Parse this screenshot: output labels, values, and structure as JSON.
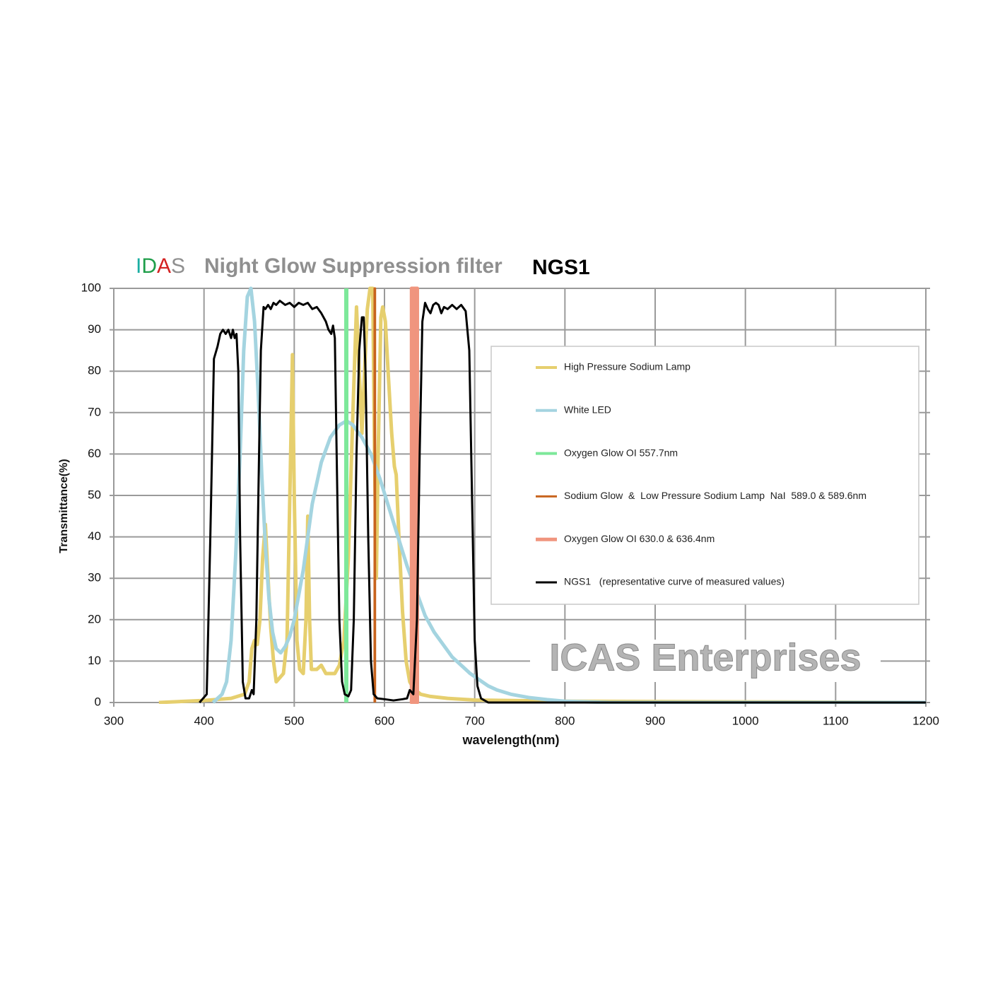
{
  "chart_data": {
    "type": "line",
    "brand": "IDAS",
    "brand_colors": [
      "#1aaea3",
      "#1f9e4a",
      "#d42222",
      "#8f8f8f"
    ],
    "title": "Night Glow Suppression filter",
    "model": "NGS1",
    "annotation": "ICAS Enterprises",
    "ylabel": "Transmittance(%)",
    "xlabel": "wavelength(nm)",
    "xlim": [
      300,
      1200
    ],
    "ylim": [
      0,
      100
    ],
    "xticks": [
      300,
      400,
      500,
      600,
      700,
      800,
      900,
      1000,
      1100,
      1200
    ],
    "yticks": [
      0,
      10,
      20,
      30,
      40,
      50,
      60,
      70,
      80,
      90,
      100
    ],
    "grid": true,
    "series": [
      {
        "name": "High Pressure Sodium Lamp",
        "color": "#e6cf6e",
        "line_width": 5,
        "x": [
          350,
          400,
          430,
          445,
          450,
          453,
          456,
          459,
          462,
          465,
          468,
          471,
          474,
          477,
          480,
          484,
          488,
          492,
          496,
          498,
          500,
          503,
          506,
          510,
          513,
          515,
          517,
          519,
          525,
          530,
          535,
          545,
          550,
          555,
          560,
          565,
          569,
          572,
          575,
          578,
          581,
          584,
          587,
          589,
          591,
          593,
          596,
          598,
          601,
          604,
          608,
          611,
          613,
          616,
          620,
          624,
          628,
          632,
          640,
          650,
          670,
          700,
          800,
          1200
        ],
        "values": [
          0,
          0.5,
          1,
          2,
          5,
          13,
          15,
          14,
          20,
          35,
          43,
          30,
          18,
          10,
          5,
          6,
          7,
          15,
          60,
          84,
          50,
          15,
          8,
          7,
          20,
          45,
          20,
          8,
          8,
          9,
          7,
          7,
          9,
          15,
          35,
          70,
          95.5,
          80,
          65,
          80,
          95,
          100,
          100,
          60,
          30,
          60,
          93,
          95.5,
          92,
          80,
          65,
          57,
          55,
          40,
          22,
          10,
          5,
          3.5,
          2,
          1.5,
          1,
          0.6,
          0.3,
          0
        ]
      },
      {
        "name": "White LED",
        "color": "#a4d4e0",
        "line_width": 5,
        "x": [
          410,
          420,
          425,
          430,
          435,
          440,
          444,
          448,
          452,
          456,
          460,
          464,
          468,
          472,
          476,
          480,
          485,
          490,
          495,
          500,
          510,
          520,
          530,
          540,
          550,
          558,
          565,
          575,
          585,
          595,
          605,
          615,
          625,
          635,
          645,
          655,
          665,
          675,
          685,
          695,
          705,
          715,
          725,
          740,
          760,
          780,
          800,
          850,
          1200
        ],
        "values": [
          0,
          2,
          5,
          15,
          35,
          60,
          85,
          98,
          100,
          92,
          75,
          55,
          38,
          25,
          17,
          13,
          12,
          13.5,
          16,
          20,
          32,
          48,
          58,
          64,
          67,
          68,
          67,
          64,
          60,
          54,
          47,
          40,
          33,
          27,
          21,
          17,
          14,
          11,
          9,
          7,
          5.5,
          4,
          3,
          2,
          1.2,
          0.7,
          0.3,
          0,
          0
        ]
      },
      {
        "name": "Oxygen Glow OI 557.7nm",
        "color": "#7de89a",
        "line_width": 6,
        "x": [
          557.7,
          557.7
        ],
        "values": [
          0,
          100
        ]
      },
      {
        "name": "Sodium Glow  &  Low Pressure Sodium Lamp  NaI  589.0 & 589.6nm",
        "color": "#c8641e",
        "line_width": 3,
        "x": [
          589.0,
          589.0,
          589.6,
          589.6
        ],
        "values": [
          0,
          100,
          100,
          0
        ]
      },
      {
        "name": "Oxygen Glow OI 630.0 & 636.4nm",
        "color": "#f0957e",
        "line_width": 5,
        "fill": true,
        "x": [
          630.0,
          630.0,
          636.4,
          636.4
        ],
        "values": [
          0,
          100,
          100,
          0
        ]
      },
      {
        "name": "NGS1   (representative curve of measured values)",
        "color": "#000000",
        "line_width": 3,
        "x": [
          395,
          403,
          407,
          411,
          415,
          418,
          421,
          424,
          427,
          430,
          432,
          434,
          436,
          438,
          440,
          443,
          446,
          450,
          453,
          455,
          458,
          461,
          463,
          466,
          468,
          471,
          474,
          477,
          480,
          484,
          490,
          495,
          500,
          505,
          510,
          515,
          520,
          525,
          530,
          535,
          538,
          541,
          543,
          545,
          547,
          550,
          553,
          556,
          560,
          563,
          566,
          569,
          572,
          575,
          577,
          579,
          582,
          585,
          588,
          592,
          600,
          610,
          620,
          625,
          628,
          632,
          636,
          639,
          642,
          645,
          648,
          651,
          654,
          657,
          660,
          663,
          666,
          670,
          675,
          680,
          685,
          690,
          694,
          697,
          700,
          703,
          707,
          715,
          1200
        ],
        "values": [
          0,
          2,
          40,
          83,
          86,
          89,
          90,
          89,
          90,
          88,
          90,
          88,
          89,
          80,
          40,
          5,
          1,
          1,
          3,
          2,
          20,
          60,
          85,
          95.5,
          95,
          96,
          95,
          96.5,
          96,
          97,
          96,
          96.5,
          95.5,
          96.5,
          96,
          96.5,
          95,
          95.5,
          94,
          92,
          90,
          89,
          91,
          88,
          60,
          20,
          5,
          2,
          1.5,
          3,
          20,
          60,
          85,
          93,
          93,
          80,
          40,
          10,
          2,
          1,
          0.8,
          0.5,
          0.8,
          1,
          3,
          2,
          20,
          60,
          92,
          96.5,
          95,
          94,
          96,
          96.5,
          96,
          94,
          95.5,
          95,
          96,
          95,
          96,
          94.5,
          85,
          50,
          15,
          4,
          1,
          0,
          0
        ]
      }
    ]
  }
}
